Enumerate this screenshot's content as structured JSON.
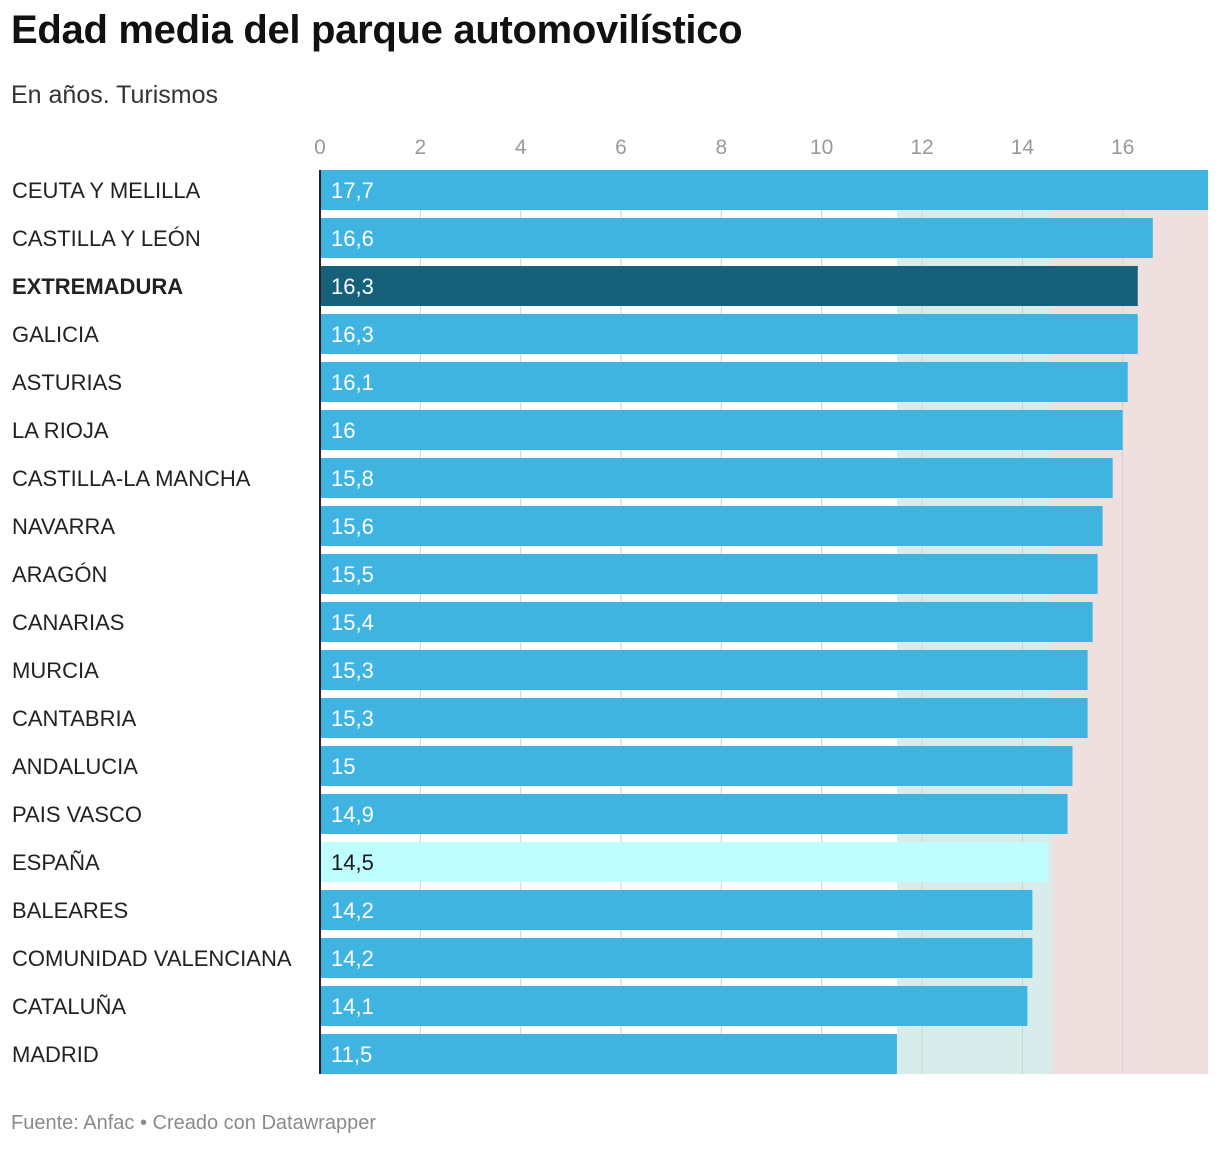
{
  "title": "Edad media del parque automovilístico",
  "subtitle": "En años. Turismos",
  "footer": "Fuente: Anfac • Creado con Datawrapper",
  "colors": {
    "bar": "#40b4e1",
    "highlight": "#16607a",
    "reference": "#bffdff",
    "band_low": "#d9ecec",
    "band_high": "#efdfdf",
    "axis": "#222222"
  },
  "chart_data": {
    "type": "bar",
    "orientation": "horizontal",
    "title": "Edad media del parque automovilístico",
    "subtitle": "En años. Turismos",
    "xlim": [
      0,
      17.7
    ],
    "ticks": [
      0,
      2,
      4,
      6,
      8,
      10,
      12,
      14,
      16
    ],
    "tick_labels": [
      "0",
      "2",
      "4",
      "6",
      "8",
      "10",
      "12",
      "14",
      "16"
    ],
    "bands": [
      {
        "from": 11.5,
        "to": 14.6,
        "color": "#d9ecec"
      },
      {
        "from": 14.6,
        "to": 17.7,
        "color": "#efdfdf"
      }
    ],
    "categories": [
      "CEUTA Y MELILLA",
      "CASTILLA Y LEÓN",
      "EXTREMADURA",
      "GALICIA",
      "ASTURIAS",
      "LA RIOJA",
      "CASTILLA-LA MANCHA",
      "NAVARRA",
      "ARAGÓN",
      "CANARIAS",
      "MURCIA",
      "CANTABRIA",
      "ANDALUCIA",
      "PAIS VASCO",
      "ESPAÑA",
      "BALEARES",
      "COMUNIDAD VALENCIANA",
      "CATALUÑA",
      "MADRID"
    ],
    "values": [
      17.7,
      16.6,
      16.3,
      16.3,
      16.1,
      16,
      15.8,
      15.6,
      15.5,
      15.4,
      15.3,
      15.3,
      15,
      14.9,
      14.5,
      14.2,
      14.2,
      14.1,
      11.5
    ],
    "value_labels": [
      "17,7",
      "16,6",
      "16,3",
      "16,3",
      "16,1",
      "16",
      "15,8",
      "15,6",
      "15,5",
      "15,4",
      "15,3",
      "15,3",
      "15",
      "14,9",
      "14,5",
      "14,2",
      "14,2",
      "14,1",
      "11,5"
    ],
    "highlight": "EXTREMADURA",
    "reference": "ESPAÑA"
  }
}
